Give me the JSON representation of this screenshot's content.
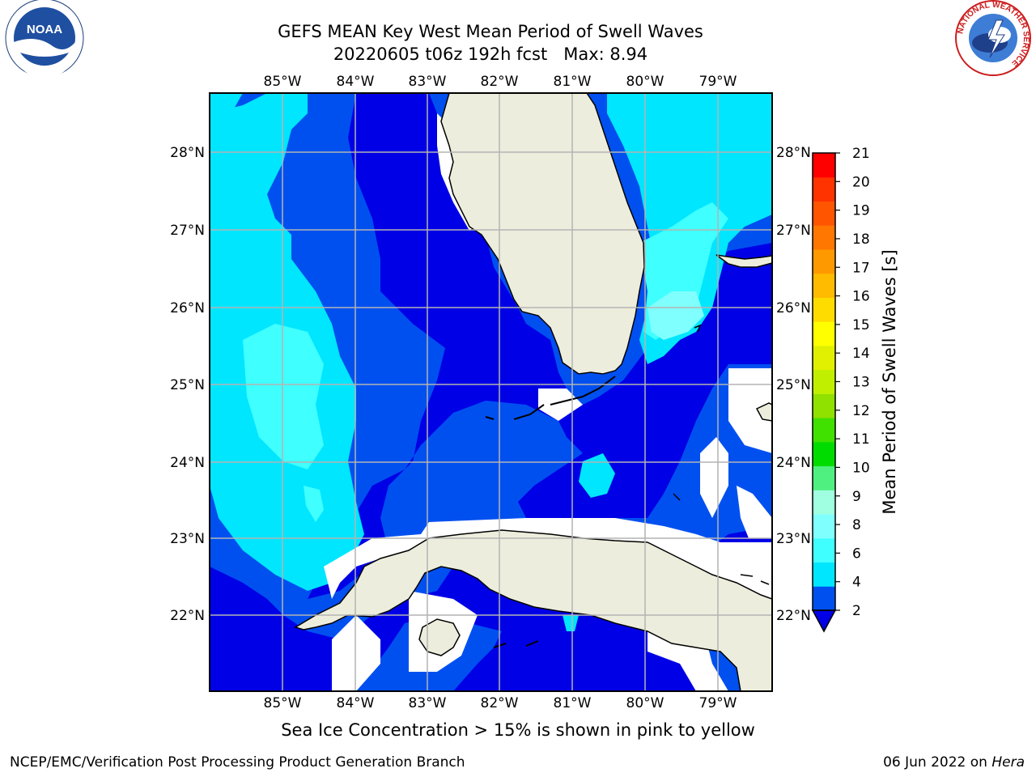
{
  "title": {
    "line1": "GEFS MEAN Key West Mean Period of Swell Waves",
    "line2": "20220605 t06z 192h fcst   Max: 8.94"
  },
  "logos": {
    "left": {
      "icon": "noaa-logo",
      "text": "NOAA"
    },
    "right": {
      "icon": "nws-logo",
      "ring_text": "NATIONAL WEATHER SERVICE"
    }
  },
  "map": {
    "lon_labels": [
      "85°W",
      "84°W",
      "83°W",
      "82°W",
      "81°W",
      "80°W",
      "79°W"
    ],
    "lat_labels": [
      "28°N",
      "27°N",
      "26°N",
      "25°N",
      "24°N",
      "23°N",
      "22°N"
    ],
    "land_color": "#ededdd",
    "gridline_color": "#b4b4b4"
  },
  "colorbar": {
    "label": "Mean Period of Swell Waves [s]",
    "ticks": [
      "21",
      "20",
      "19",
      "18",
      "17",
      "16",
      "15",
      "14",
      "13",
      "12",
      "11",
      "10",
      "9",
      "8",
      "6",
      "4",
      "2"
    ],
    "colors": [
      "#0050f0",
      "#00e6ff",
      "#40ffff",
      "#80ffff",
      "#a0ffe0",
      "#50f080",
      "#00dc00",
      "#40e000",
      "#90e000",
      "#c0f000",
      "#e0f000",
      "#ffff00",
      "#ffdc00",
      "#ffbb00",
      "#ff9900",
      "#ff7700",
      "#ff5500",
      "#ff3300",
      "#ff0000"
    ],
    "under_color": "#0000e6"
  },
  "note": "Sea Ice Concentration > 15% is shown in pink to yellow",
  "footer": {
    "left": "NCEP/EMC/Verification Post Processing Product Generation Branch",
    "date": "06 Jun 2022 on ",
    "host": "Hera"
  }
}
